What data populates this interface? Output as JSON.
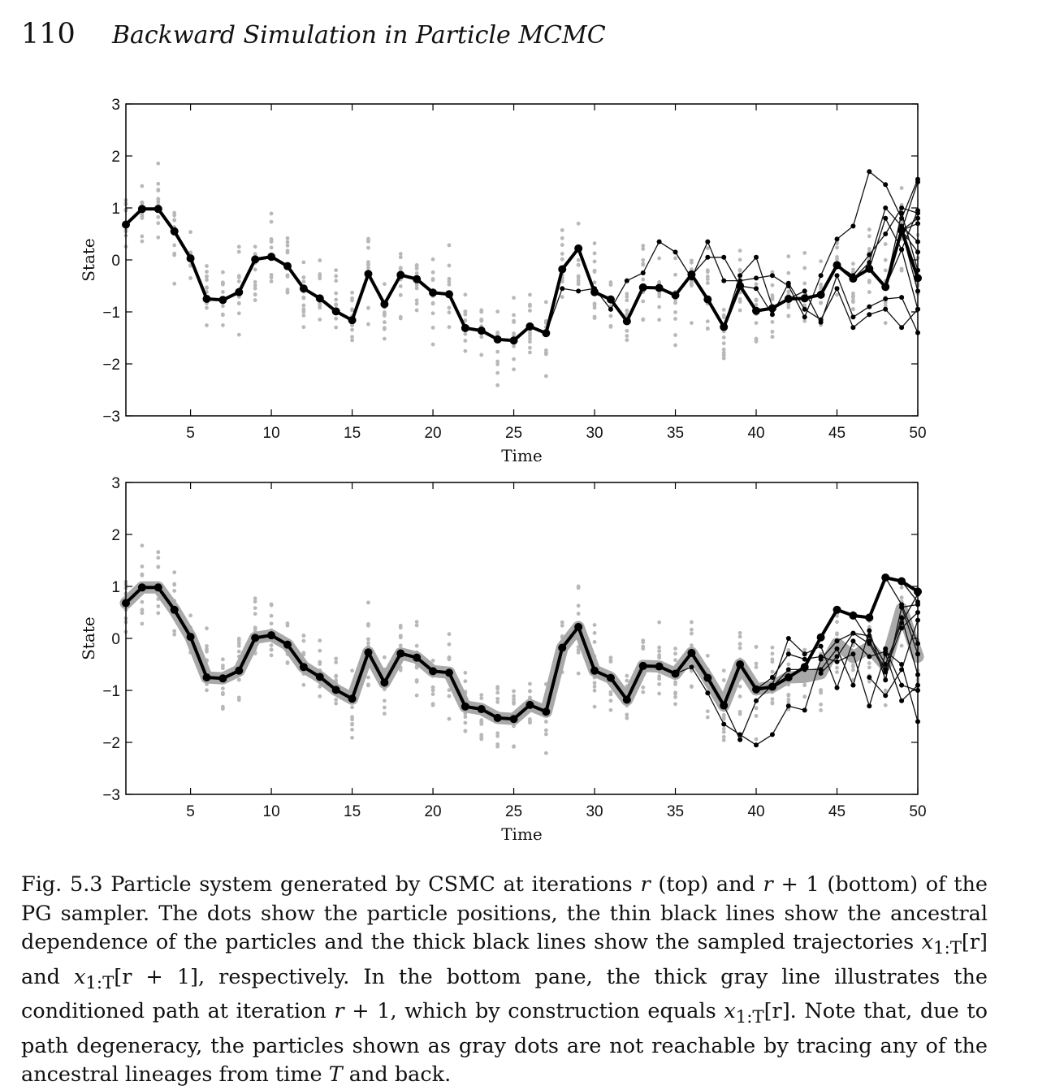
{
  "header": {
    "page_number": "110",
    "running_title": "Backward Simulation in Particle MCMC"
  },
  "chart_data": [
    {
      "type": "line",
      "panel": "top",
      "xlabel": "Time",
      "ylabel": "State",
      "xlim": [
        1,
        50
      ],
      "ylim": [
        -3,
        3
      ],
      "xticks": [
        5,
        10,
        15,
        20,
        25,
        30,
        35,
        40,
        45,
        50
      ],
      "yticks": [
        -3,
        -2,
        -1,
        0,
        1,
        2,
        3
      ],
      "ytick_labels": [
        "−3",
        "−2",
        "−1",
        "0",
        "1",
        "2",
        "3"
      ],
      "grid": false,
      "colors": {
        "particles": "#b8b8b8",
        "trajectory": "#000000",
        "ancestral": "#111111"
      },
      "sampled_trajectory": {
        "x": [
          1,
          2,
          3,
          4,
          5,
          6,
          7,
          8,
          9,
          10,
          11,
          12,
          13,
          14,
          15,
          16,
          17,
          18,
          19,
          20,
          21,
          22,
          23,
          24,
          25,
          26,
          27,
          28,
          29,
          30,
          31,
          32,
          33,
          34,
          35,
          36,
          37,
          38,
          39,
          40,
          41,
          42,
          43,
          44,
          45,
          46,
          47,
          48,
          49,
          50
        ],
        "y": [
          0.68,
          0.98,
          0.98,
          0.55,
          0.03,
          -0.75,
          -0.77,
          -0.62,
          0.01,
          0.06,
          -0.12,
          -0.55,
          -0.74,
          -0.99,
          -1.16,
          -0.27,
          -0.85,
          -0.29,
          -0.37,
          -0.63,
          -0.66,
          -1.31,
          -1.36,
          -1.53,
          -1.55,
          -1.28,
          -1.41,
          -0.18,
          0.22,
          -0.62,
          -0.76,
          -1.18,
          -0.53,
          -0.54,
          -0.68,
          -0.28,
          -0.76,
          -1.29,
          -0.5,
          -0.98,
          -0.93,
          -0.75,
          -0.74,
          -0.67,
          -0.1,
          -0.36,
          -0.17,
          -0.52,
          0.57,
          -0.35
        ]
      },
      "ancestral_lineages": [
        {
          "x": [
            27,
            28,
            29,
            30,
            31,
            32,
            33,
            34,
            35,
            36,
            37,
            38,
            39,
            40,
            41,
            42,
            43,
            44,
            45,
            46,
            47,
            48,
            49,
            50
          ],
          "y": [
            -1.41,
            -0.55,
            -0.6,
            -0.55,
            -0.95,
            -0.4,
            -0.25,
            0.35,
            0.15,
            -0.35,
            0.35,
            -0.4,
            -0.4,
            -0.35,
            -0.3,
            -0.5,
            -1.1,
            -0.3,
            0.4,
            0.65,
            1.7,
            1.45,
            0.8,
            1.55
          ]
        },
        {
          "x": [
            35,
            36,
            37,
            38,
            39,
            40,
            41,
            42,
            43,
            44,
            45,
            46,
            47,
            48,
            49,
            50
          ],
          "y": [
            -0.68,
            -0.3,
            0.05,
            0.05,
            -0.5,
            -0.55,
            -1.05,
            -0.45,
            -0.95,
            -1.15,
            -0.55,
            -1.3,
            -1.05,
            -0.95,
            -1.3,
            -0.95
          ]
        },
        {
          "x": [
            38,
            39,
            40,
            41,
            42,
            43,
            44,
            45,
            46,
            47,
            48,
            49,
            50
          ],
          "y": [
            -1.29,
            -0.3,
            0.05,
            -0.9,
            -0.75,
            -0.6,
            -1.2,
            -0.3,
            -1.1,
            -0.9,
            -0.75,
            -0.72,
            -1.4
          ]
        },
        {
          "x": [
            45,
            46,
            47,
            48,
            49,
            50
          ],
          "y": [
            -0.1,
            -0.3,
            0.1,
            0.5,
            1.0,
            0.9
          ]
        },
        {
          "x": [
            46,
            47,
            48,
            49,
            50
          ],
          "y": [
            -0.36,
            -0.05,
            1.0,
            0.65,
            0.35
          ]
        },
        {
          "x": [
            47,
            48,
            49,
            50
          ],
          "y": [
            -0.17,
            0.8,
            0.2,
            0.95
          ]
        },
        {
          "x": [
            48,
            49,
            50
          ],
          "y": [
            -0.52,
            0.9,
            -0.2
          ]
        },
        {
          "x": [
            49,
            50
          ],
          "y": [
            0.57,
            0.7
          ]
        },
        {
          "x": [
            49,
            50
          ],
          "y": [
            0.57,
            0.15
          ]
        },
        {
          "x": [
            49,
            50
          ],
          "y": [
            0.57,
            -0.6
          ]
        },
        {
          "x": [
            49,
            50
          ],
          "y": [
            0.57,
            1.5
          ]
        },
        {
          "x": [
            49,
            50
          ],
          "y": [
            0.57,
            0.8
          ]
        },
        {
          "x": [
            48,
            49,
            50
          ],
          "y": [
            -0.52,
            0.2,
            -0.95
          ]
        }
      ]
    },
    {
      "type": "line",
      "panel": "bottom",
      "xlabel": "Time",
      "ylabel": "State",
      "xlim": [
        1,
        50
      ],
      "ylim": [
        -3,
        3
      ],
      "xticks": [
        5,
        10,
        15,
        20,
        25,
        30,
        35,
        40,
        45,
        50
      ],
      "yticks": [
        -3,
        -2,
        -1,
        0,
        1,
        2,
        3
      ],
      "ytick_labels": [
        "−3",
        "−2",
        "−1",
        "0",
        "1",
        "2",
        "3"
      ],
      "grid": false,
      "colors": {
        "particles": "#b8b8b8",
        "trajectory": "#000000",
        "conditioned_path": "#a9a9a9",
        "ancestral": "#111111"
      },
      "conditioned_path": {
        "x": [
          1,
          2,
          3,
          4,
          5,
          6,
          7,
          8,
          9,
          10,
          11,
          12,
          13,
          14,
          15,
          16,
          17,
          18,
          19,
          20,
          21,
          22,
          23,
          24,
          25,
          26,
          27,
          28,
          29,
          30,
          31,
          32,
          33,
          34,
          35,
          36,
          37,
          38,
          39,
          40,
          41,
          42,
          43,
          44,
          45,
          46,
          47,
          48,
          49,
          50
        ],
        "y": [
          0.68,
          0.98,
          0.98,
          0.55,
          0.03,
          -0.75,
          -0.77,
          -0.62,
          0.01,
          0.06,
          -0.12,
          -0.55,
          -0.74,
          -0.99,
          -1.16,
          -0.27,
          -0.85,
          -0.29,
          -0.37,
          -0.63,
          -0.66,
          -1.31,
          -1.36,
          -1.53,
          -1.55,
          -1.28,
          -1.41,
          -0.18,
          0.22,
          -0.62,
          -0.76,
          -1.18,
          -0.53,
          -0.54,
          -0.68,
          -0.28,
          -0.76,
          -1.29,
          -0.5,
          -0.98,
          -0.93,
          -0.75,
          -0.74,
          -0.67,
          -0.1,
          -0.36,
          -0.17,
          -0.52,
          0.57,
          -0.35
        ]
      },
      "sampled_trajectory": {
        "x": [
          1,
          2,
          3,
          4,
          5,
          6,
          7,
          8,
          9,
          10,
          11,
          12,
          13,
          14,
          15,
          16,
          17,
          18,
          19,
          20,
          21,
          22,
          23,
          24,
          25,
          26,
          27,
          28,
          29,
          30,
          31,
          32,
          33,
          34,
          35,
          36,
          37,
          38,
          39,
          40,
          41,
          42,
          43,
          44,
          45,
          46,
          47,
          48,
          49,
          50
        ],
        "y": [
          0.68,
          0.98,
          0.98,
          0.55,
          0.03,
          -0.75,
          -0.77,
          -0.62,
          0.01,
          0.06,
          -0.12,
          -0.55,
          -0.74,
          -0.99,
          -1.16,
          -0.27,
          -0.85,
          -0.29,
          -0.37,
          -0.63,
          -0.66,
          -1.31,
          -1.36,
          -1.53,
          -1.55,
          -1.28,
          -1.41,
          -0.18,
          0.22,
          -0.62,
          -0.76,
          -1.18,
          -0.53,
          -0.54,
          -0.68,
          -0.28,
          -0.76,
          -1.29,
          -0.5,
          -0.98,
          -0.93,
          -0.75,
          -0.55,
          0.02,
          0.55,
          0.44,
          0.4,
          1.17,
          1.1,
          0.9
        ]
      },
      "ancestral_lineages": [
        {
          "x": [
            35,
            36,
            37,
            38,
            39,
            40,
            41,
            42,
            43,
            44,
            45,
            46,
            47,
            48,
            49,
            50
          ],
          "y": [
            -0.68,
            -0.55,
            -1.05,
            -1.65,
            -1.85,
            -2.05,
            -1.85,
            -1.3,
            -1.38,
            -0.4,
            -0.05,
            0.1,
            0.05,
            -0.5,
            0.3,
            0.85
          ]
        },
        {
          "x": [
            38,
            39,
            40,
            41,
            42,
            43,
            44,
            45,
            46,
            47,
            48,
            49,
            50
          ],
          "y": [
            -1.29,
            -1.95,
            -1.2,
            -0.9,
            0.0,
            -0.3,
            -0.15,
            -0.95,
            -0.05,
            -0.35,
            -0.25,
            -0.5,
            -1.6
          ]
        },
        {
          "x": [
            40,
            41,
            42,
            43,
            44,
            45,
            46,
            47,
            48,
            49,
            50
          ],
          "y": [
            -0.98,
            -0.75,
            -0.3,
            -0.4,
            -0.35,
            -0.45,
            -0.3,
            -1.3,
            -0.3,
            -1.2,
            -0.9
          ]
        },
        {
          "x": [
            41,
            42,
            43,
            44,
            45,
            46,
            47,
            48,
            49,
            50
          ],
          "y": [
            -0.93,
            -0.6,
            -0.6,
            -0.6,
            -0.2,
            -0.9,
            0.15,
            -0.8,
            0.6,
            0.65
          ]
        },
        {
          "x": [
            44,
            45,
            46,
            47,
            48,
            49,
            50
          ],
          "y": [
            -0.67,
            -0.35,
            0.1,
            -0.1,
            -0.65,
            0.4,
            -0.7
          ]
        },
        {
          "x": [
            46,
            47,
            48,
            49,
            50
          ],
          "y": [
            0.44,
            -0.05,
            -0.6,
            0.2,
            0.5
          ]
        },
        {
          "x": [
            48,
            49,
            50
          ],
          "y": [
            1.17,
            0.65,
            -0.1
          ]
        },
        {
          "x": [
            49,
            50
          ],
          "y": [
            1.1,
            0.7
          ]
        },
        {
          "x": [
            49,
            50
          ],
          "y": [
            0.6,
            -0.3
          ]
        },
        {
          "x": [
            48,
            49,
            50
          ],
          "y": [
            -0.2,
            -0.9,
            -1.0
          ]
        },
        {
          "x": [
            47,
            48,
            49,
            50
          ],
          "y": [
            -0.75,
            -1.1,
            -0.6,
            0.35
          ]
        }
      ]
    }
  ],
  "caption": {
    "p1": "Fig. 5.3 Particle system generated by CSMC at iterations ",
    "m1": "r",
    "p2": " (top) and ",
    "m2": "r",
    "p3": " + 1 (bottom) of the PG sampler. The dots show the particle positions, the thin black lines show the ancestral dependence of the particles and the thick black lines show the sampled trajectories ",
    "m3": "x",
    "s3": "1:T",
    "b3": "[r]",
    "p4": " and ",
    "m4": "x",
    "s4": "1:T",
    "b4": "[r + 1]",
    "p5": ", respectively. In the bottom pane, the thick gray line illustrates the conditioned path at iteration ",
    "m5": "r",
    "p6": " + 1, which by construction equals ",
    "m6": "x",
    "s6": "1:T",
    "b6": "[r]",
    "p7": ". Note that, due to path degeneracy, the particles shown as gray dots are not reachable by tracing any of the ancestral lineages from time ",
    "m7": "T",
    "p8": " and back."
  }
}
